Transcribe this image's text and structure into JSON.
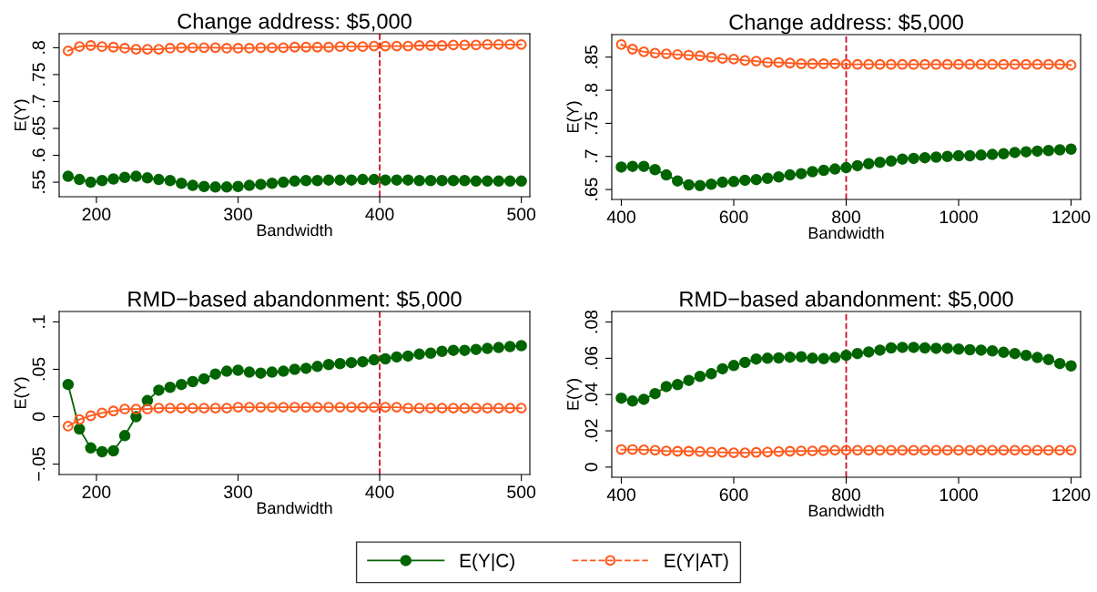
{
  "chart_data": [
    {
      "type": "line",
      "title": "Change address: $5,000",
      "xlabel": "Bandwidth",
      "ylabel": "E(Y)",
      "marker": "circle",
      "legend": "bottom",
      "grid": false,
      "x": [
        180,
        188,
        196,
        204,
        212,
        220,
        228,
        236,
        244,
        252,
        260,
        268,
        276,
        284,
        292,
        300,
        308,
        316,
        324,
        332,
        340,
        348,
        356,
        364,
        372,
        380,
        388,
        396,
        404,
        412,
        420,
        428,
        436,
        444,
        452,
        460,
        468,
        476,
        484,
        492,
        500
      ],
      "xlim": [
        173.7,
        506
      ],
      "xticks": [
        200,
        300,
        400,
        500
      ],
      "ylim": [
        0.523,
        0.826
      ],
      "yticks": [
        {
          "value": 0.55,
          "label": ".55"
        },
        {
          "value": 0.6,
          "label": ".6"
        },
        {
          "value": 0.65,
          "label": ".65"
        },
        {
          "value": 0.7,
          "label": ".7"
        },
        {
          "value": 0.75,
          "label": ".75"
        },
        {
          "value": 0.8,
          "label": ".8"
        }
      ],
      "ref_lines": [
        {
          "axis": "x",
          "value": 400,
          "color": "#c8102e",
          "line_style": "dashed"
        }
      ],
      "series": [
        {
          "name": "E(Y|C)",
          "color": "#006400",
          "values": [
            0.561,
            0.555,
            0.55,
            0.553,
            0.556,
            0.559,
            0.561,
            0.558,
            0.555,
            0.553,
            0.548,
            0.544,
            0.542,
            0.541,
            0.541,
            0.542,
            0.544,
            0.546,
            0.548,
            0.55,
            0.552,
            0.553,
            0.553,
            0.554,
            0.554,
            0.554,
            0.555,
            0.555,
            0.554,
            0.554,
            0.554,
            0.553,
            0.553,
            0.553,
            0.553,
            0.553,
            0.552,
            0.552,
            0.552,
            0.552,
            0.552
          ]
        },
        {
          "name": "E(Y|AT)",
          "color": "#ff5a1e",
          "values": [
            0.794,
            0.802,
            0.804,
            0.802,
            0.801,
            0.799,
            0.797,
            0.797,
            0.797,
            0.799,
            0.8,
            0.8,
            0.8,
            0.8,
            0.799,
            0.799,
            0.799,
            0.8,
            0.8,
            0.8,
            0.801,
            0.801,
            0.801,
            0.801,
            0.802,
            0.802,
            0.802,
            0.803,
            0.803,
            0.803,
            0.803,
            0.804,
            0.804,
            0.804,
            0.805,
            0.805,
            0.805,
            0.806,
            0.806,
            0.806,
            0.806
          ]
        }
      ]
    },
    {
      "type": "line",
      "title": "Change address: $5,000",
      "xlabel": "Bandwidth",
      "ylabel": "E(Y)",
      "marker": "circle",
      "grid": false,
      "x": [
        400,
        420,
        440,
        460,
        480,
        500,
        520,
        540,
        560,
        580,
        600,
        620,
        640,
        660,
        680,
        700,
        720,
        740,
        760,
        780,
        800,
        820,
        840,
        860,
        880,
        900,
        920,
        940,
        960,
        980,
        1000,
        1020,
        1040,
        1060,
        1080,
        1100,
        1120,
        1140,
        1160,
        1180,
        1200
      ],
      "xlim": [
        383,
        1217
      ],
      "xticks": [
        400,
        600,
        800,
        1000,
        1200
      ],
      "ylim": [
        0.635,
        0.884
      ],
      "yticks": [
        {
          "value": 0.65,
          "label": ".65"
        },
        {
          "value": 0.7,
          "label": ".7"
        },
        {
          "value": 0.75,
          "label": ".75"
        },
        {
          "value": 0.8,
          "label": ".8"
        },
        {
          "value": 0.85,
          "label": ".85"
        }
      ],
      "ref_lines": [
        {
          "axis": "x",
          "value": 800,
          "color": "#c8102e",
          "line_style": "dashed"
        }
      ],
      "series": [
        {
          "color": "#006400",
          "values": [
            0.684,
            0.685,
            0.685,
            0.68,
            0.672,
            0.663,
            0.657,
            0.656,
            0.658,
            0.661,
            0.662,
            0.664,
            0.665,
            0.667,
            0.669,
            0.672,
            0.674,
            0.677,
            0.679,
            0.681,
            0.683,
            0.686,
            0.689,
            0.691,
            0.693,
            0.696,
            0.697,
            0.698,
            0.699,
            0.7,
            0.701,
            0.701,
            0.702,
            0.703,
            0.704,
            0.706,
            0.707,
            0.708,
            0.709,
            0.71,
            0.711
          ]
        },
        {
          "color": "#ff5a1e",
          "values": [
            0.869,
            0.862,
            0.858,
            0.856,
            0.855,
            0.854,
            0.853,
            0.852,
            0.85,
            0.848,
            0.847,
            0.845,
            0.844,
            0.842,
            0.842,
            0.841,
            0.84,
            0.84,
            0.84,
            0.84,
            0.839,
            0.839,
            0.839,
            0.839,
            0.839,
            0.839,
            0.839,
            0.839,
            0.839,
            0.839,
            0.839,
            0.839,
            0.839,
            0.839,
            0.839,
            0.839,
            0.839,
            0.839,
            0.839,
            0.839,
            0.838
          ]
        }
      ]
    },
    {
      "type": "line",
      "title": "RMD−based abandonment: $5,000",
      "xlabel": "Bandwidth",
      "ylabel": "E(Y)",
      "marker": "circle",
      "grid": false,
      "x": [
        180,
        188,
        196,
        204,
        212,
        220,
        228,
        236,
        244,
        252,
        260,
        268,
        276,
        284,
        292,
        300,
        308,
        316,
        324,
        332,
        340,
        348,
        356,
        364,
        372,
        380,
        388,
        396,
        404,
        412,
        420,
        428,
        436,
        444,
        452,
        460,
        468,
        476,
        484,
        492,
        500
      ],
      "xlim": [
        173.7,
        506
      ],
      "xticks": [
        200,
        300,
        400,
        500
      ],
      "ylim": [
        -0.061,
        0.111
      ],
      "yticks": [
        {
          "value": -0.05,
          "label": "−.05"
        },
        0,
        {
          "value": 0.05,
          "label": ".05"
        },
        {
          "value": 0.1,
          "label": ".1"
        }
      ],
      "ref_lines": [
        {
          "axis": "x",
          "value": 400,
          "color": "#c8102e",
          "line_style": "dashed"
        }
      ],
      "series": [
        {
          "color": "#006400",
          "values": [
            0.034,
            -0.013,
            -0.033,
            -0.037,
            -0.036,
            -0.02,
            0.0,
            0.017,
            0.028,
            0.031,
            0.034,
            0.037,
            0.04,
            0.045,
            0.048,
            0.049,
            0.047,
            0.046,
            0.047,
            0.048,
            0.05,
            0.051,
            0.053,
            0.055,
            0.056,
            0.057,
            0.058,
            0.06,
            0.061,
            0.063,
            0.064,
            0.066,
            0.067,
            0.069,
            0.07,
            0.07,
            0.071,
            0.072,
            0.073,
            0.074,
            0.075
          ]
        },
        {
          "color": "#ff5a1e",
          "values": [
            -0.01,
            -0.003,
            0.001,
            0.004,
            0.006,
            0.008,
            0.008,
            0.008,
            0.009,
            0.009,
            0.009,
            0.009,
            0.009,
            0.009,
            0.009,
            0.01,
            0.01,
            0.01,
            0.01,
            0.01,
            0.01,
            0.01,
            0.01,
            0.01,
            0.01,
            0.01,
            0.01,
            0.01,
            0.01,
            0.01,
            0.009,
            0.009,
            0.009,
            0.009,
            0.009,
            0.009,
            0.009,
            0.009,
            0.009,
            0.009,
            0.009
          ]
        }
      ]
    },
    {
      "type": "line",
      "title": "RMD−based abandonment: $5,000",
      "xlabel": "Bandwidth",
      "ylabel": "E(Y)",
      "marker": "circle",
      "grid": false,
      "x": [
        400,
        420,
        440,
        460,
        480,
        500,
        520,
        540,
        560,
        580,
        600,
        620,
        640,
        660,
        680,
        700,
        720,
        740,
        760,
        780,
        800,
        820,
        840,
        860,
        880,
        900,
        920,
        940,
        960,
        980,
        1000,
        1020,
        1040,
        1060,
        1080,
        1100,
        1120,
        1140,
        1160,
        1180,
        1200
      ],
      "xlim": [
        383,
        1217
      ],
      "xticks": [
        400,
        600,
        800,
        1000,
        1200
      ],
      "ylim": [
        -0.0056,
        0.0858
      ],
      "yticks": [
        0,
        {
          "value": 0.02,
          "label": ".02"
        },
        {
          "value": 0.04,
          "label": ".04"
        },
        {
          "value": 0.06,
          "label": ".06"
        },
        {
          "value": 0.08,
          "label": ".08"
        }
      ],
      "ref_lines": [
        {
          "axis": "x",
          "value": 800,
          "color": "#c8102e",
          "line_style": "dashed"
        }
      ],
      "series": [
        {
          "color": "#006400",
          "values": [
            0.038,
            0.0364,
            0.0374,
            0.0405,
            0.0444,
            0.0455,
            0.0478,
            0.05,
            0.0515,
            0.0542,
            0.056,
            0.0577,
            0.0596,
            0.06,
            0.0602,
            0.0606,
            0.0608,
            0.06,
            0.0598,
            0.0604,
            0.0616,
            0.0626,
            0.0635,
            0.0645,
            0.0657,
            0.066,
            0.066,
            0.0657,
            0.0655,
            0.0655,
            0.0651,
            0.0647,
            0.0645,
            0.0641,
            0.0633,
            0.0626,
            0.0616,
            0.0604,
            0.0593,
            0.0571,
            0.0558
          ]
        },
        {
          "color": "#ff5a1e",
          "values": [
            0.0097,
            0.0097,
            0.0095,
            0.0093,
            0.0089,
            0.0087,
            0.0087,
            0.0085,
            0.0083,
            0.0081,
            0.0079,
            0.0079,
            0.0081,
            0.0083,
            0.0085,
            0.0087,
            0.0089,
            0.0089,
            0.0091,
            0.0093,
            0.0093,
            0.0093,
            0.0093,
            0.0093,
            0.0093,
            0.0093,
            0.0093,
            0.0093,
            0.0093,
            0.0093,
            0.0093,
            0.0093,
            0.0093,
            0.0093,
            0.0093,
            0.0093,
            0.0093,
            0.0093,
            0.0093,
            0.0093,
            0.0093
          ]
        }
      ]
    }
  ]
}
